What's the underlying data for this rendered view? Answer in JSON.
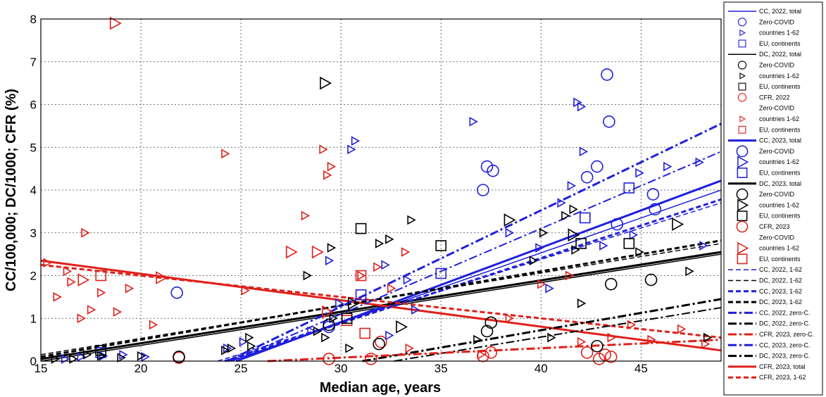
{
  "chart_data": {
    "type": "scatter",
    "title": "",
    "xlabel": "Median age, years",
    "ylabel": "CC/100,000;  DC/1000; CFR (%)",
    "xlim": [
      15,
      49
    ],
    "ylim": [
      0,
      8
    ],
    "xticks": [
      "15",
      "20",
      "25",
      "30",
      "35",
      "40",
      "45"
    ],
    "yticks": [
      "0",
      "1",
      "2",
      "3",
      "4",
      "5",
      "6",
      "7",
      "8"
    ],
    "grid": true,
    "legend_position": "right-outside",
    "legend": [
      "CC, 2022, total",
      "Zero-COVID",
      "countries 1-62",
      "EU, continents",
      "DC, 2022, total",
      "Zero-COVID",
      "countries 1-62",
      "EU, continents",
      "CFR, 2022",
      "Zero-COVID",
      "countries 1-62",
      "EU, continents",
      "CC, 2023, total",
      "Zero-COVID",
      "countries 1-62",
      "EU, continents",
      "DC, 2023, total",
      "Zero-COVID",
      "countries 1-62",
      "EU, continents",
      "CFR, 2023",
      "Zero-COVID",
      "countries 1-62",
      "EU, continents",
      "CC, 2022, 1-62",
      "DC, 2022, 1-62",
      "CC, 2023, 1-62",
      "DC, 2023, 1-62",
      "CC, 2022, zero-C.",
      "DC, 2022, zero-C.",
      "CFR, 2023, zero-C.",
      "CC, 2023, zero-C.",
      "DC, 2023, zero-C.",
      "CFR, 2023, total",
      "CFR, 2023, 1-62"
    ],
    "colors": {
      "blue": "#1f1fdc",
      "black": "#000000",
      "red": "#e0201a"
    },
    "trend_lines": [
      {
        "color": "blue",
        "style": "solid",
        "width": 1.5,
        "x": [
          15,
          49
        ],
        "y": [
          -1.55,
          4.0
        ]
      },
      {
        "color": "black",
        "style": "solid",
        "width": 1.5,
        "x": [
          15,
          49
        ],
        "y": [
          0.0,
          2.5
        ]
      },
      {
        "color": "blue",
        "style": "solid",
        "width": 3,
        "x": [
          15,
          49
        ],
        "y": [
          -1.7,
          4.22
        ]
      },
      {
        "color": "black",
        "style": "solid",
        "width": 3,
        "x": [
          15,
          49
        ],
        "y": [
          0.05,
          2.55
        ]
      },
      {
        "color": "red",
        "style": "solid",
        "width": 3,
        "x": [
          15,
          49
        ],
        "y": [
          2.35,
          0.25
        ]
      },
      {
        "color": "blue",
        "style": "dashed",
        "width": 1.5,
        "x": [
          15,
          49
        ],
        "y": [
          -1.3,
          3.7
        ]
      },
      {
        "color": "black",
        "style": "dashed",
        "width": 1.5,
        "x": [
          15,
          49
        ],
        "y": [
          0.15,
          2.75
        ]
      },
      {
        "color": "blue",
        "style": "dashed",
        "width": 3,
        "x": [
          15,
          49
        ],
        "y": [
          -1.4,
          3.78
        ]
      },
      {
        "color": "black",
        "style": "dashed",
        "width": 3,
        "x": [
          15,
          49
        ],
        "y": [
          0.1,
          2.82
        ]
      },
      {
        "color": "red",
        "style": "dashed",
        "width": 3,
        "x": [
          15,
          49
        ],
        "y": [
          2.25,
          0.55
        ]
      },
      {
        "color": "blue",
        "style": "dashdot",
        "width": 3,
        "x": [
          15,
          49
        ],
        "y": [
          -2.1,
          5.55
        ]
      },
      {
        "color": "blue",
        "style": "dashdot",
        "width": 2,
        "x": [
          15,
          49
        ],
        "y": [
          -1.9,
          4.9
        ]
      },
      {
        "color": "black",
        "style": "dashdot",
        "width": 3,
        "x": [
          15,
          49
        ],
        "y": [
          -1.3,
          1.45
        ]
      },
      {
        "color": "black",
        "style": "dashdot",
        "width": 2,
        "x": [
          15,
          49
        ],
        "y": [
          -1.35,
          1.25
        ]
      },
      {
        "color": "red",
        "style": "dashdot",
        "width": 3,
        "x": [
          15,
          49
        ],
        "y": [
          -0.25,
          0.5
        ]
      }
    ],
    "series": [
      {
        "color": "red",
        "marker": "triangle",
        "x": [
          15.3,
          15.8,
          16.3,
          16.5,
          17,
          17.2,
          17.5,
          18,
          18.8,
          19.4,
          20.6,
          24.2,
          25.2,
          28.2,
          29.1,
          29.3,
          29.5,
          31,
          31.8,
          32.5,
          33.2,
          33.4,
          37,
          38.4,
          40,
          41.4,
          42,
          43.5,
          44.5,
          45.5,
          47,
          48.2
        ],
        "y": [
          2.3,
          1.5,
          2.1,
          1.85,
          1.0,
          3.0,
          1.2,
          1.6,
          1.15,
          1.7,
          0.85,
          4.85,
          1.65,
          3.4,
          4.95,
          4.35,
          4.55,
          2.0,
          2.2,
          1.7,
          2.55,
          0.3,
          0.15,
          1.0,
          1.8,
          2.0,
          0.45,
          0.55,
          0.85,
          0.5,
          0.75,
          0.4
        ]
      },
      {
        "color": "red",
        "marker": "triangle-large",
        "x": [
          18.7,
          17.1,
          21.0,
          27.5,
          28.8,
          29.3
        ],
        "y": [
          7.9,
          1.9,
          1.95,
          2.55,
          2.55,
          1.15
        ]
      },
      {
        "color": "red",
        "marker": "circle",
        "x": [
          21.9,
          29.4,
          31.5,
          32.0,
          37.1,
          37.5,
          42.3,
          42.9,
          43.2,
          43.5
        ],
        "y": [
          0.08,
          0.05,
          0.05,
          0.45,
          0.12,
          0.2,
          0.2,
          0.05,
          0.15,
          0.1
        ]
      },
      {
        "color": "red",
        "marker": "square",
        "x": [
          18.0,
          30.3,
          31.0,
          31.2
        ],
        "y": [
          2.0,
          0.95,
          2.0,
          0.65
        ]
      },
      {
        "color": "blue",
        "marker": "triangle",
        "x": [
          16.2,
          17.0,
          18.1,
          19.1,
          20.2,
          24.3,
          25.1,
          28.5,
          29.4,
          29.9,
          30.5,
          30.7,
          32.2,
          32.4,
          33.3,
          33.7,
          36.6,
          38.4,
          39.9,
          40.4,
          41.0,
          41.5,
          41.8,
          42.0,
          42.1,
          43.1,
          44.6,
          44.9,
          46.3,
          47.9,
          48.1
        ],
        "y": [
          0.05,
          0.1,
          0.12,
          0.15,
          0.1,
          0.3,
          0.45,
          0.7,
          2.35,
          1.35,
          4.95,
          5.15,
          2.25,
          0.6,
          1.9,
          1.2,
          5.6,
          3.0,
          2.65,
          1.7,
          3.7,
          4.1,
          6.05,
          5.95,
          4.9,
          2.7,
          2.95,
          4.4,
          4.55,
          4.65,
          2.7
        ]
      },
      {
        "color": "blue",
        "marker": "circle",
        "x": [
          21.8,
          29.4,
          37.1,
          37.3,
          37.6,
          42.3,
          42.8,
          43.3,
          43.4,
          43.8,
          45.6,
          45.7
        ],
        "y": [
          1.6,
          0.8,
          4.0,
          4.55,
          4.45,
          4.3,
          4.55,
          6.7,
          5.6,
          3.2,
          3.9,
          3.55
        ]
      },
      {
        "color": "blue",
        "marker": "square",
        "x": [
          18.0,
          31.0,
          35.0,
          42.2,
          44.4
        ],
        "y": [
          0.2,
          1.55,
          2.05,
          3.35,
          4.05
        ]
      },
      {
        "color": "black",
        "marker": "triangle",
        "x": [
          15.7,
          16.6,
          17.3,
          18.0,
          19.0,
          20.0,
          24.2,
          25.4,
          28.3,
          29.5,
          29.6,
          30.4,
          31.9,
          32.4,
          33.5,
          36.8,
          39.6,
          40.1,
          40.5,
          41.2,
          41.6,
          41.7,
          42.0,
          44.9,
          47.4,
          48.3,
          24.5,
          25.5,
          28.8,
          29.2
        ],
        "y": [
          0.05,
          0.05,
          0.15,
          0.12,
          0.08,
          0.12,
          0.25,
          0.55,
          2.0,
          2.65,
          1.0,
          0.3,
          2.75,
          2.85,
          3.3,
          0.5,
          2.35,
          3.0,
          0.55,
          3.4,
          3.55,
          2.6,
          1.35,
          2.55,
          2.1,
          0.55,
          0.3,
          0.35,
          0.7,
          0.55
        ]
      },
      {
        "color": "black",
        "marker": "triangle-large",
        "x": [
          29.2,
          30.6,
          33.0,
          38.4,
          41.6,
          46.8
        ],
        "y": [
          6.5,
          1.35,
          0.8,
          3.3,
          2.95,
          3.2
        ]
      },
      {
        "color": "black",
        "marker": "circle",
        "x": [
          21.9,
          29.4,
          31.9,
          37.3,
          37.5,
          42.8,
          43.5,
          45.5
        ],
        "y": [
          0.1,
          0.85,
          0.4,
          0.7,
          0.9,
          0.35,
          1.8,
          1.9
        ]
      },
      {
        "color": "black",
        "marker": "square",
        "x": [
          18.0,
          31.0,
          35.0,
          42.0,
          44.4,
          30.3
        ],
        "y": [
          0.25,
          3.1,
          2.7,
          2.75,
          2.75,
          1.0
        ]
      }
    ]
  }
}
